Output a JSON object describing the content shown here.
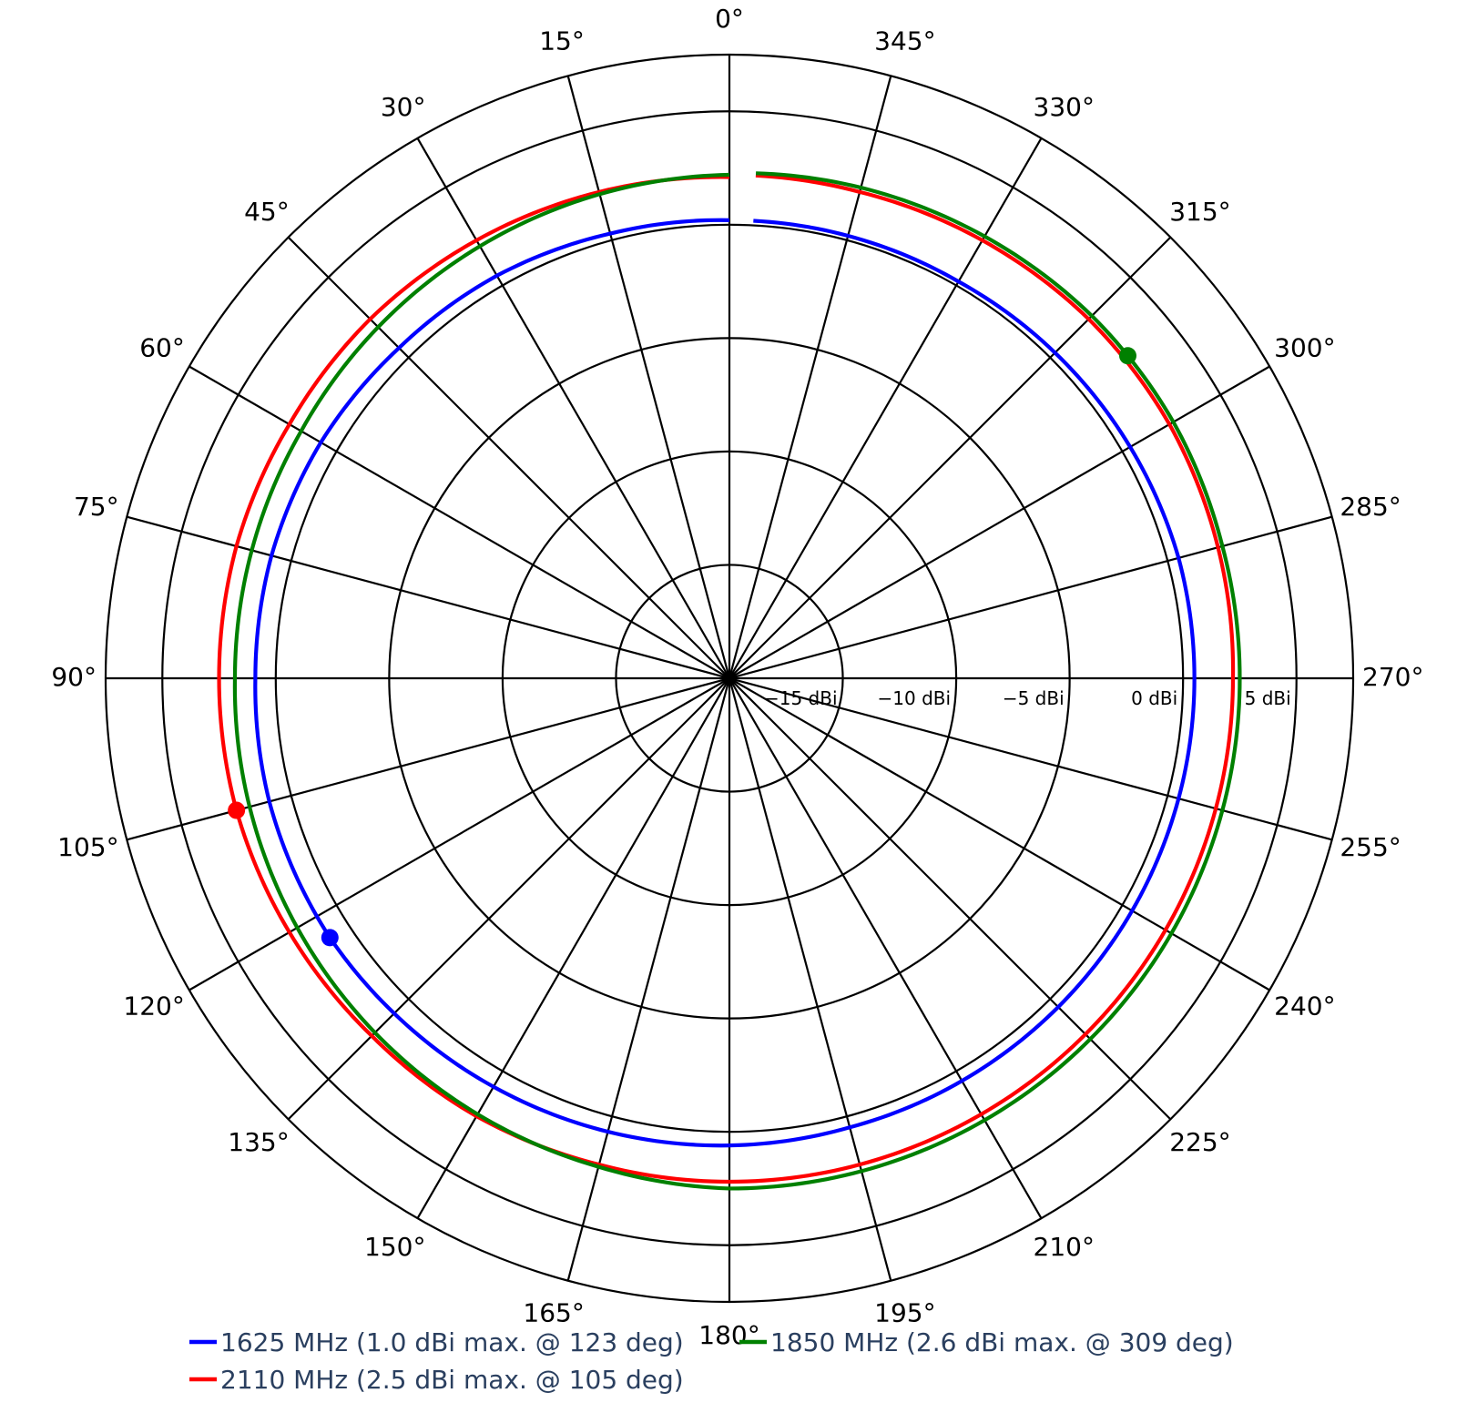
{
  "chart_data": {
    "type": "polar-line",
    "angle_unit": "deg",
    "angle_direction": "counterclockwise",
    "zero_angle": "top",
    "angle_ticks": [
      0,
      15,
      30,
      45,
      60,
      75,
      90,
      105,
      120,
      135,
      150,
      165,
      180,
      195,
      210,
      225,
      240,
      255,
      270,
      285,
      300,
      315,
      330,
      345
    ],
    "angle_tick_labels": [
      "0°",
      "15°",
      "30°",
      "45°",
      "60°",
      "75°",
      "90°",
      "105°",
      "120°",
      "135°",
      "150°",
      "165°",
      "180°",
      "195°",
      "210°",
      "225°",
      "240°",
      "255°",
      "270°",
      "285°",
      "300°",
      "315°",
      "330°",
      "345°"
    ],
    "radial_range": [
      -20,
      7.5
    ],
    "radial_ticks": [
      -15,
      -10,
      -5,
      0,
      5
    ],
    "radial_tick_labels": [
      "−15 dBi",
      "−10 dBi",
      "−5 dBi",
      "0 dBi",
      "5 dBi"
    ],
    "gap_between_degrees": [
      0,
      357
    ],
    "series": [
      {
        "name": "1625 MHz (1.0 dBi max. @ 123 deg)",
        "color": "#0000ff",
        "max_marker": {
          "angle": 123,
          "value": 1.0
        },
        "angles": [
          0,
          15,
          30,
          45,
          60,
          75,
          90,
          105,
          120,
          123,
          135,
          150,
          165,
          180,
          195,
          210,
          225,
          240,
          255,
          270,
          285,
          300,
          315,
          330,
          345,
          357
        ],
        "values": [
          0.2,
          0.3,
          0.5,
          0.6,
          0.8,
          0.9,
          0.9,
          1.0,
          1.0,
          1.0,
          0.9,
          0.8,
          0.7,
          0.6,
          0.5,
          0.5,
          0.5,
          0.5,
          0.5,
          0.5,
          0.5,
          0.4,
          0.3,
          0.2,
          0.2,
          0.2
        ]
      },
      {
        "name": "1850 MHz (2.6 dBi max. @ 309 deg)",
        "color": "#008000",
        "max_marker": {
          "angle": 309,
          "value": 2.6
        },
        "angles": [
          0,
          15,
          30,
          45,
          60,
          75,
          90,
          105,
          120,
          135,
          150,
          165,
          180,
          195,
          210,
          225,
          240,
          255,
          270,
          285,
          300,
          309,
          315,
          330,
          345,
          357
        ],
        "values": [
          2.2,
          2.1,
          2.0,
          1.9,
          1.8,
          1.8,
          1.8,
          1.9,
          2.0,
          2.1,
          2.2,
          2.3,
          2.5,
          2.5,
          2.5,
          2.5,
          2.5,
          2.5,
          2.5,
          2.5,
          2.6,
          2.6,
          2.6,
          2.5,
          2.4,
          2.3
        ]
      },
      {
        "name": "2110 MHz (2.5 dBi max. @ 105 deg)",
        "color": "#ff0000",
        "max_marker": {
          "angle": 105,
          "value": 2.5
        },
        "angles": [
          0,
          15,
          30,
          45,
          60,
          75,
          90,
          105,
          120,
          135,
          150,
          165,
          180,
          195,
          210,
          225,
          240,
          255,
          270,
          285,
          300,
          315,
          330,
          345,
          357
        ],
        "values": [
          2.1,
          2.2,
          2.3,
          2.4,
          2.4,
          2.5,
          2.5,
          2.5,
          2.4,
          2.3,
          2.3,
          2.2,
          2.2,
          2.2,
          2.2,
          2.2,
          2.2,
          2.2,
          2.2,
          2.3,
          2.4,
          2.4,
          2.3,
          2.2,
          2.2
        ]
      }
    ]
  }
}
